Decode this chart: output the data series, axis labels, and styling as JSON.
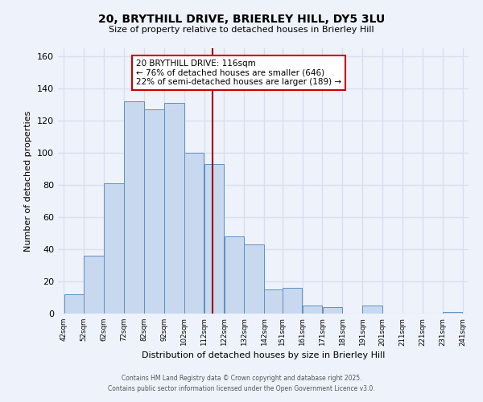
{
  "title": "20, BRYTHILL DRIVE, BRIERLEY HILL, DY5 3LU",
  "subtitle": "Size of property relative to detached houses in Brierley Hill",
  "xlabel": "Distribution of detached houses by size in Brierley Hill",
  "ylabel": "Number of detached properties",
  "bar_color": "#c8d8ee",
  "bar_edge_color": "#6090c0",
  "background_color": "#eef2fa",
  "grid_color": "#d8dff0",
  "bins": [
    42,
    52,
    62,
    72,
    82,
    92,
    102,
    112,
    122,
    132,
    142,
    151,
    161,
    171,
    181,
    191,
    201,
    211,
    221,
    231,
    241
  ],
  "values": [
    12,
    36,
    81,
    132,
    127,
    131,
    100,
    93,
    48,
    43,
    15,
    16,
    5,
    4,
    0,
    5,
    0,
    0,
    0,
    1
  ],
  "property_size": 116,
  "property_label": "20 BRYTHILL DRIVE: 116sqm",
  "annotation_line1": "← 76% of detached houses are smaller (646)",
  "annotation_line2": "22% of semi-detached houses are larger (189) →",
  "vline_color": "#990000",
  "annotation_box_edge": "#cc0000",
  "ylim": [
    0,
    165
  ],
  "yticks": [
    0,
    20,
    40,
    60,
    80,
    100,
    120,
    140,
    160
  ],
  "tick_labels": [
    "42sqm",
    "52sqm",
    "62sqm",
    "72sqm",
    "82sqm",
    "92sqm",
    "102sqm",
    "112sqm",
    "122sqm",
    "132sqm",
    "142sqm",
    "151sqm",
    "161sqm",
    "171sqm",
    "181sqm",
    "191sqm",
    "201sqm",
    "211sqm",
    "221sqm",
    "231sqm",
    "241sqm"
  ],
  "footer_line1": "Contains HM Land Registry data © Crown copyright and database right 2025.",
  "footer_line2": "Contains public sector information licensed under the Open Government Licence v3.0."
}
